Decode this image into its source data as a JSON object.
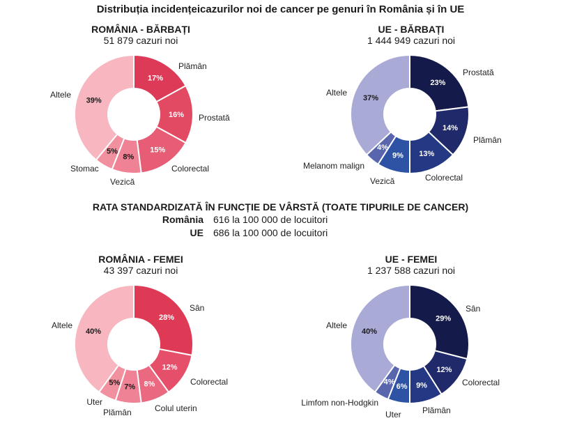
{
  "header": {
    "title": "Distribuția incidențeicazurilor noi de cancer pe genuri în România și în UE"
  },
  "age_rate": {
    "title": "RATA STANDARDIZATĂ ÎN FUNCȚIE DE VÂRSTĂ (TOATE TIPURILE DE CANCER)",
    "rows": [
      {
        "label": "România",
        "value": "616 la 100 000 de locuitori"
      },
      {
        "label": "UE",
        "value": "686 la 100 000 de locuitori"
      }
    ]
  },
  "chart_data": [
    {
      "type": "pie",
      "title": "ROMÂNIA - BĂRBAȚI",
      "subtitle": "51 879 cazuri noi",
      "series": [
        {
          "name": "Plămân",
          "value": 17,
          "label": "17%",
          "color": "#dc3a57"
        },
        {
          "name": "Prostată",
          "value": 16,
          "label": "16%",
          "color": "#e24a64"
        },
        {
          "name": "Colorectal",
          "value": 15,
          "label": "15%",
          "color": "#e85d76"
        },
        {
          "name": "Vezică",
          "value": 8,
          "label": "8%",
          "color": "#ef8294"
        },
        {
          "name": "Stomac",
          "value": 5,
          "label": "5%",
          "color": "#f1909f"
        },
        {
          "name": "Altele",
          "value": 39,
          "label": "39%",
          "color": "#f7b6c0"
        }
      ]
    },
    {
      "type": "pie",
      "title": "UE - BĂRBAȚI",
      "subtitle": "1 444 949 cazuri noi",
      "series": [
        {
          "name": "Prostată",
          "value": 23,
          "label": "23%",
          "color": "#141a4a"
        },
        {
          "name": "Plămân",
          "value": 14,
          "label": "14%",
          "color": "#202a6a"
        },
        {
          "name": "Colorectal",
          "value": 13,
          "label": "13%",
          "color": "#243883"
        },
        {
          "name": "Vezică",
          "value": 9,
          "label": "9%",
          "color": "#2e53a4"
        },
        {
          "name": "Melanom malign",
          "value": 4,
          "label": "4%",
          "color": "#5966ad"
        },
        {
          "name": "Altele",
          "value": 37,
          "label": "37%",
          "color": "#a9aad6"
        }
      ]
    },
    {
      "type": "pie",
      "title": "ROMÂNIA - FEMEI",
      "subtitle": "43 397 cazuri noi",
      "series": [
        {
          "name": "Sân",
          "value": 28,
          "label": "28%",
          "color": "#de3a56"
        },
        {
          "name": "Colorectal",
          "value": 12,
          "label": "12%",
          "color": "#e54f69"
        },
        {
          "name": "Colul uterin",
          "value": 8,
          "label": "8%",
          "color": "#ea6880"
        },
        {
          "name": "Plămân",
          "value": 7,
          "label": "7%",
          "color": "#ef8395"
        },
        {
          "name": "Uter",
          "value": 5,
          "label": "5%",
          "color": "#f1909f"
        },
        {
          "name": "Altele",
          "value": 40,
          "label": "40%",
          "color": "#f7b6c0"
        }
      ]
    },
    {
      "type": "pie",
      "title": "UE - FEMEI",
      "subtitle": "1 237 588 cazuri noi",
      "series": [
        {
          "name": "Sân",
          "value": 29,
          "label": "29%",
          "color": "#141a4a"
        },
        {
          "name": "Colorectal",
          "value": 12,
          "label": "12%",
          "color": "#202a6a"
        },
        {
          "name": "Plămân",
          "value": 9,
          "label": "9%",
          "color": "#243883"
        },
        {
          "name": "Uter",
          "value": 6,
          "label": "6%",
          "color": "#2e53a4"
        },
        {
          "name": "Limfom non-Hodgkin",
          "value": 4,
          "label": "4%",
          "color": "#5966ad"
        },
        {
          "name": "Altele",
          "value": 40,
          "label": "40%",
          "color": "#a9aad6"
        }
      ]
    }
  ]
}
